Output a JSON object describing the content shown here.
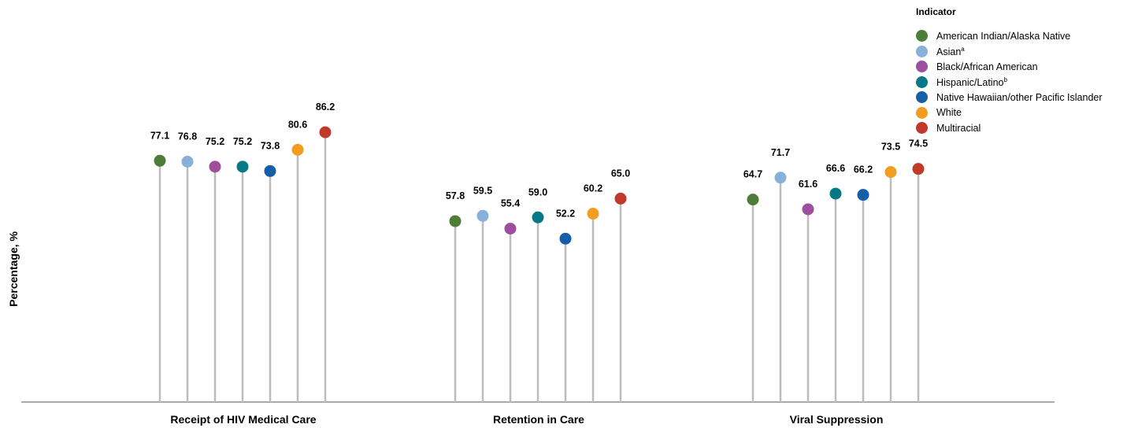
{
  "chart_data": {
    "type": "lollipop",
    "ylabel": "Percentage, %",
    "ylim": [
      0,
      100
    ],
    "grid": false,
    "legend_title": "Indicator",
    "legend_position": "top-right",
    "categories": [
      "Receipt of HIV Medical Care",
      "Retention in Care",
      "Viral Suppression"
    ],
    "series": [
      {
        "name": "American Indian/Alaska Native",
        "sup": "",
        "color": "#4e7d3a",
        "values": [
          77.1,
          57.8,
          64.7
        ]
      },
      {
        "name": "Asian",
        "sup": "a",
        "color": "#87b1d9",
        "values": [
          76.8,
          59.5,
          71.7
        ]
      },
      {
        "name": "Black/African American",
        "sup": "",
        "color": "#9b4f9c",
        "values": [
          75.2,
          55.4,
          61.6
        ]
      },
      {
        "name": "Hispanic/Latino",
        "sup": "b",
        "color": "#077885",
        "values": [
          75.2,
          59.0,
          66.6
        ]
      },
      {
        "name": "Native Hawaiian/other Pacific Islander",
        "sup": "",
        "color": "#155ea8",
        "values": [
          73.8,
          52.2,
          66.2
        ]
      },
      {
        "name": "White",
        "sup": "",
        "color": "#f29d21",
        "values": [
          80.6,
          60.2,
          73.5
        ]
      },
      {
        "name": "Multiracial",
        "sup": "",
        "color": "#c1392b",
        "values": [
          86.2,
          65.0,
          74.5
        ]
      }
    ]
  }
}
